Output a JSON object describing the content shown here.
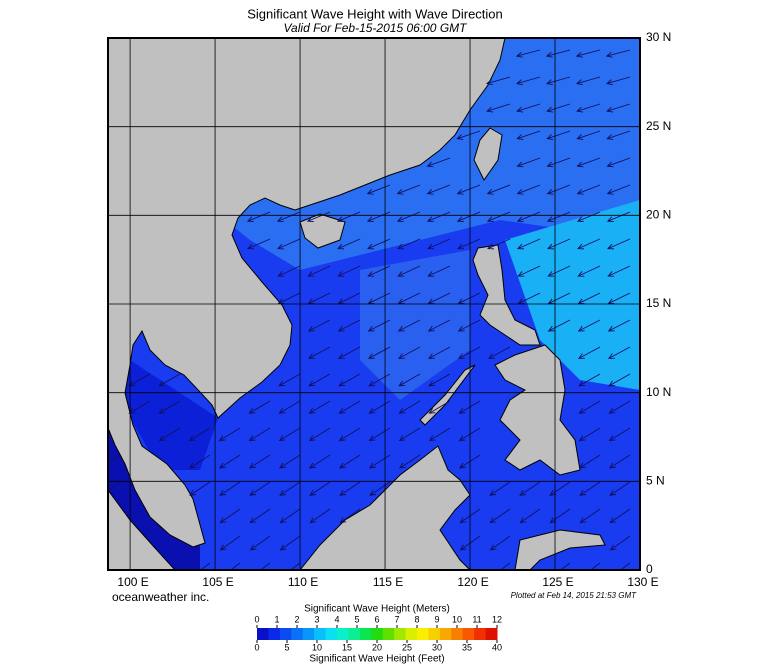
{
  "header": {
    "title": "Significant Wave Height with Wave Direction",
    "subtitle": "Valid For Feb-15-2015 06:00 GMT"
  },
  "map": {
    "lon_range": [
      98.7,
      130
    ],
    "lat_range": [
      0,
      30
    ],
    "lon_ticks": [
      {
        "value": 100,
        "label": "100 E"
      },
      {
        "value": 105,
        "label": "105 E"
      },
      {
        "value": 110,
        "label": "110 E"
      },
      {
        "value": 115,
        "label": "115 E"
      },
      {
        "value": 120,
        "label": "120 E"
      },
      {
        "value": 125,
        "label": "125 E"
      },
      {
        "value": 130,
        "label": "130 E"
      }
    ],
    "lat_ticks": [
      0,
      {
        "value": 5,
        "label": "5 N"
      },
      {
        "value": 10,
        "label": "10 N"
      },
      {
        "value": 15,
        "label": "15 N"
      },
      {
        "value": 20,
        "label": "20 N"
      },
      {
        "value": 25,
        "label": "25 N"
      },
      {
        "value": 30,
        "label": "30 N"
      }
    ],
    "grid": true,
    "credit": "oceanweather inc.",
    "plotted": "Plotted at Feb 14, 2015 21:53 GMT"
  },
  "colorbar": {
    "meters_title": "Significant Wave Height (Meters)",
    "meters_range": [
      0,
      12
    ],
    "meters_ticks": [
      0,
      1,
      2,
      3,
      4,
      5,
      6,
      7,
      8,
      9,
      10,
      11,
      12
    ],
    "feet_title": "Significant Wave Height (Feet)",
    "feet_range": [
      0,
      40
    ],
    "feet_ticks": [
      0,
      5,
      10,
      15,
      20,
      25,
      30,
      35,
      40
    ],
    "colors": [
      "#0a10c8",
      "#0a2ae6",
      "#0a4cf0",
      "#0a70f5",
      "#0a96f8",
      "#0ac0fa",
      "#0ae0f0",
      "#0af0c8",
      "#0af090",
      "#0ae650",
      "#20dc10",
      "#60e000",
      "#a0e800",
      "#d8f000",
      "#f8f000",
      "#f8d000",
      "#f8a800",
      "#f88000",
      "#f85800",
      "#f03000",
      "#e01000"
    ]
  }
}
